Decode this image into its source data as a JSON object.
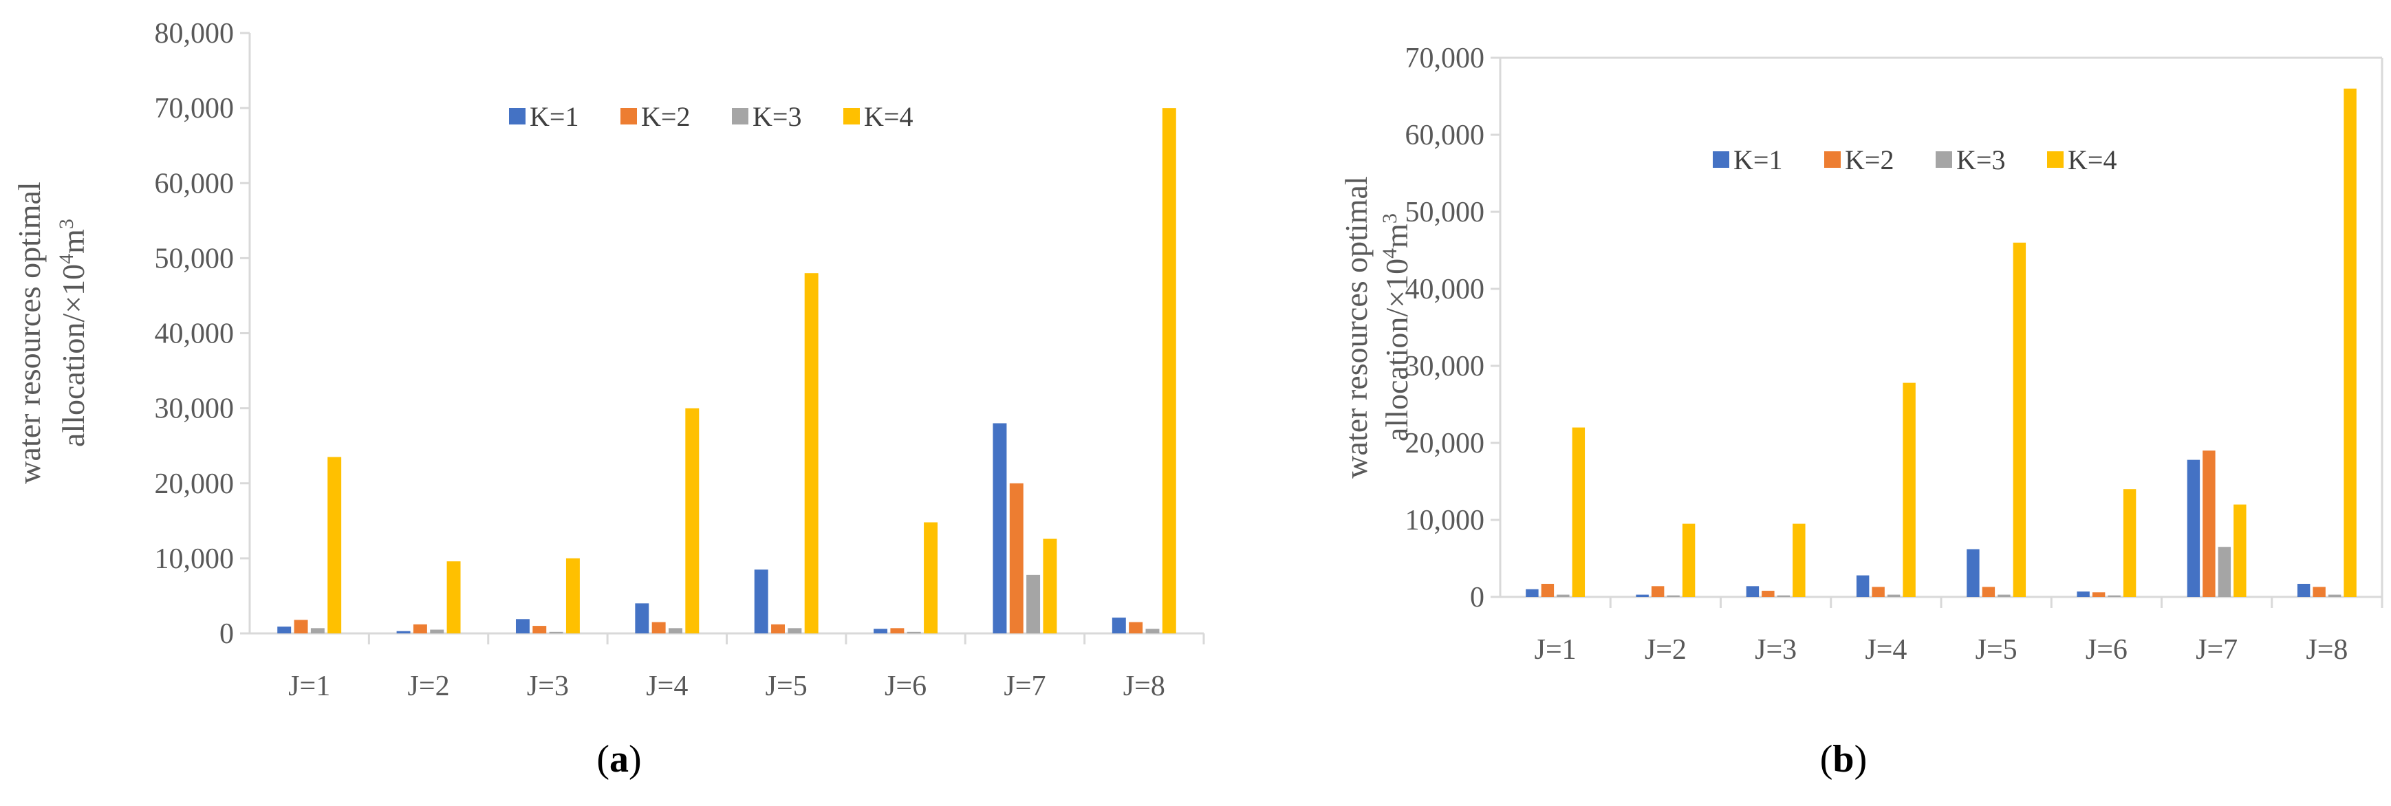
{
  "colors": {
    "K=1": "#4472C4",
    "K=2": "#ED7D31",
    "K=3": "#A5A5A5",
    "K=4": "#FFC000",
    "axis": "#D9D9D9",
    "text": "#595959"
  },
  "chart_data": [
    {
      "type": "bar",
      "id": "a",
      "caption_open": "(",
      "caption_letter": "a",
      "caption_close": ")",
      "ylabel_line1": "water resources optimal",
      "ylabel_line2_pre": "allocation/×10",
      "ylabel_sup1": "4",
      "ylabel_mid": "m",
      "ylabel_sup2": "3",
      "categories": [
        "J=1",
        "J=2",
        "J=3",
        "J=4",
        "J=5",
        "J=6",
        "J=7",
        "J=8"
      ],
      "ylim": [
        0,
        80000
      ],
      "yticks": [
        0,
        10000,
        20000,
        30000,
        40000,
        50000,
        60000,
        70000,
        80000
      ],
      "ytick_labels": [
        "0",
        "10,000",
        "20,000",
        "30,000",
        "40,000",
        "50,000",
        "60,000",
        "70,000",
        "80,000"
      ],
      "legend_position": "top-center",
      "grid": false,
      "series": [
        {
          "name": "K=1",
          "values": [
            900,
            300,
            1900,
            4000,
            8500,
            600,
            28000,
            2100
          ]
        },
        {
          "name": "K=2",
          "values": [
            1800,
            1200,
            1000,
            1500,
            1200,
            700,
            20000,
            1500
          ]
        },
        {
          "name": "K=3",
          "values": [
            700,
            500,
            200,
            700,
            700,
            200,
            7800,
            600
          ]
        },
        {
          "name": "K=4",
          "values": [
            23500,
            9600,
            10000,
            30000,
            48000,
            14800,
            12600,
            70000
          ]
        }
      ]
    },
    {
      "type": "bar",
      "id": "b",
      "caption_open": "(",
      "caption_letter": "b",
      "caption_close": ")",
      "ylabel_line1": "water resources optimal",
      "ylabel_line2_pre": "allocation/×10",
      "ylabel_sup1": "4",
      "ylabel_mid": "m",
      "ylabel_sup2": "3",
      "categories": [
        "J=1",
        "J=2",
        "J=3",
        "J=4",
        "J=5",
        "J=6",
        "J=7",
        "J=8"
      ],
      "ylim": [
        0,
        70000
      ],
      "yticks": [
        0,
        10000,
        20000,
        30000,
        40000,
        50000,
        60000,
        70000
      ],
      "ytick_labels": [
        "0",
        "10,000",
        "20,000",
        "30,000",
        "40,000",
        "50,000",
        "60,000",
        "70,000"
      ],
      "legend_position": "top-center",
      "grid": false,
      "series": [
        {
          "name": "K=1",
          "values": [
            1000,
            300,
            1400,
            2800,
            6200,
            700,
            17800,
            1700
          ]
        },
        {
          "name": "K=2",
          "values": [
            1700,
            1400,
            800,
            1300,
            1300,
            600,
            19000,
            1300
          ]
        },
        {
          "name": "K=3",
          "values": [
            300,
            200,
            200,
            300,
            300,
            200,
            6500,
            300
          ]
        },
        {
          "name": "K=4",
          "values": [
            22000,
            9500,
            9500,
            27800,
            46000,
            14000,
            12000,
            66000
          ]
        }
      ]
    }
  ]
}
